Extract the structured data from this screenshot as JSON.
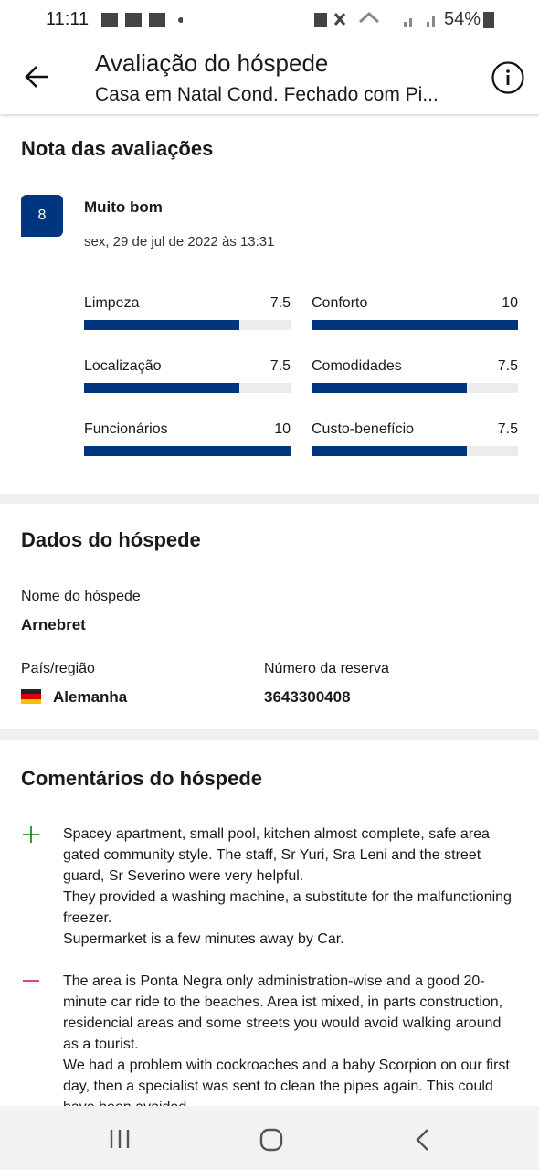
{
  "status_bar": {
    "time": "11:11",
    "battery": "54%"
  },
  "header": {
    "title": "Avaliação do hóspede",
    "subtitle": "Casa em Natal Cond. Fechado com Pi..."
  },
  "ratings": {
    "title": "Nota das avaliações",
    "score": "8",
    "verdict": "Muito bom",
    "date": "sex, 29 de jul de 2022 às 13:31",
    "xlim": [
      0,
      10
    ],
    "items": [
      {
        "label": "Limpeza",
        "value": 7.5
      },
      {
        "label": "Conforto",
        "value": 10
      },
      {
        "label": "Localização",
        "value": 7.5
      },
      {
        "label": "Comodidades",
        "value": 7.5
      },
      {
        "label": "Funcionários",
        "value": 10
      },
      {
        "label": "Custo-benefício",
        "value": 7.5
      }
    ]
  },
  "guest": {
    "title": "Dados do hóspede",
    "name_label": "Nome do hóspede",
    "name": "Arnebret",
    "country_label": "País/região",
    "country": "Alemanha",
    "booking_label": "Número da reserva",
    "booking": "3643300408"
  },
  "comments": {
    "title": "Comentários do hóspede",
    "positive": "Spacey apartment, small pool, kitchen almost complete, safe area gated community style. The staff, Sr Yuri, Sra Leni and the street guard, Sr Severino were very helpful.\nThey provided a washing machine, a substitute for the malfunctioning freezer.\nSupermarket is a few minutes away by Car.",
    "negative": "The area is Ponta Negra only administration-wise and a good 20-minute car ride to the beaches. Area ist mixed, in parts construction, residencial areas and some streets you would avoid walking around as a tourist.\nWe had a problem with cockroaches and a baby Scorpion on our first day, then a specialist was sent to clean the pipes again. This could have been avoided."
  }
}
